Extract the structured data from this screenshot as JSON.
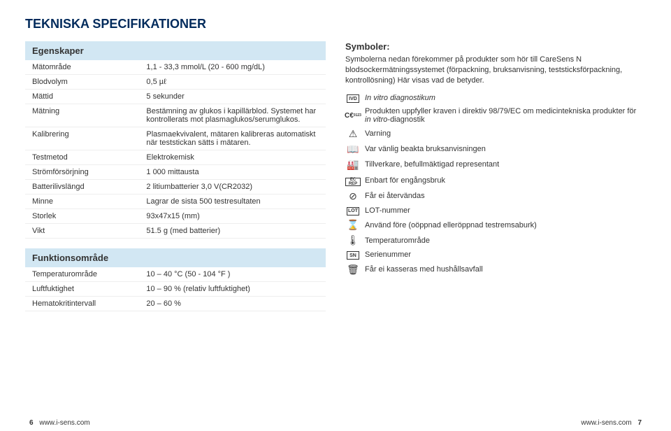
{
  "page": {
    "title": "TEKNISKA SPECIFIKATIONER",
    "footer": {
      "left_page": "6",
      "right_page": "7",
      "url": "www.i-sens.com"
    }
  },
  "left": {
    "section_egenskaper": {
      "label": "Egenskaper",
      "rows": [
        {
          "k": "Mätområde",
          "v": "1,1 - 33,3 mmol/L (20 - 600 mg/dL)"
        },
        {
          "k": "Blodvolym",
          "v": "0,5 µℓ"
        },
        {
          "k": "Mättid",
          "v": "5 sekunder"
        },
        {
          "k": "Mätning",
          "v": "Bestämning av glukos i kapillärblod. Systemet har kontrollerats mot plasmaglukos/serumglukos."
        },
        {
          "k": "Kalibrering",
          "v": "Plasmaekvivalent, mätaren kalibreras automatiskt när teststickan sätts i mätaren."
        },
        {
          "k": "Testmetod",
          "v": "Elektrokemisk"
        },
        {
          "k": "Strömförsörjning",
          "v": "1 000 mittausta"
        },
        {
          "k": "Batterilivslängd",
          "v": "2 litiumbatterier 3,0 V(CR2032)"
        },
        {
          "k": "Minne",
          "v": "Lagrar de sista 500 testresultaten"
        },
        {
          "k": "Storlek",
          "v": "93x47x15 (mm)"
        },
        {
          "k": "Vikt",
          "v": "51.5 g (med batterier)"
        }
      ]
    },
    "section_funktion": {
      "label": "Funktionsområde",
      "rows": [
        {
          "k": "Temperaturområde",
          "v": "10 – 40 °C (50 - 104 °F )"
        },
        {
          "k": "Luftfuktighet",
          "v": "10 – 90 % (relativ luftfuktighet)"
        },
        {
          "k": "Hematokritintervall",
          "v": "20 – 60 %"
        }
      ]
    }
  },
  "right": {
    "symbols_title": "Symboler:",
    "symbols_intro": "Symbolerna nedan förekommer på produkter som hör till CareSens N blodsockermätningssystemet (förpackning, bruksanvisning, teststicksförpackning, kontrollösning) Här visas vad de betyder.",
    "rows": [
      {
        "code": "IVD",
        "kind": "box",
        "text": "In vitro diagnostikum",
        "italic": true
      },
      {
        "code": "CE0123",
        "kind": "ce",
        "text": "Produkten uppfyller kraven i direktiv 98/79/EC om medicintekniska produkter för in vitro-diagnostik",
        "italic_tail": "in vitro"
      },
      {
        "code": "warn",
        "kind": "glyph",
        "glyph": "⚠",
        "text": "Varning"
      },
      {
        "code": "ifu",
        "kind": "glyph",
        "glyph": "📖",
        "text": "Var vänlig beakta bruksanvisningen"
      },
      {
        "code": "mfr",
        "kind": "glyph",
        "glyph": "🏭",
        "text": "Tillverkare, befullmäktigad representant"
      },
      {
        "code": "ECREP",
        "kind": "box2",
        "text": "Enbart för engångsbruk"
      },
      {
        "code": "noreuse",
        "kind": "glyph",
        "glyph": "⊘",
        "text": "Får ei återvändas"
      },
      {
        "code": "LOT",
        "kind": "box",
        "text": "LOT-nummer"
      },
      {
        "code": "useby",
        "kind": "glyph",
        "glyph": "⌛",
        "text": "Använd före (oöppnad elleröppnad testremsaburk)"
      },
      {
        "code": "temp",
        "kind": "glyph",
        "glyph": "🌡",
        "text": "Temperaturområde"
      },
      {
        "code": "SN",
        "kind": "box",
        "text": "Serienummer"
      },
      {
        "code": "nowaste",
        "kind": "glyph",
        "glyph": "🗑",
        "text": "Får ei kasseras med hushållsavfall"
      }
    ]
  }
}
